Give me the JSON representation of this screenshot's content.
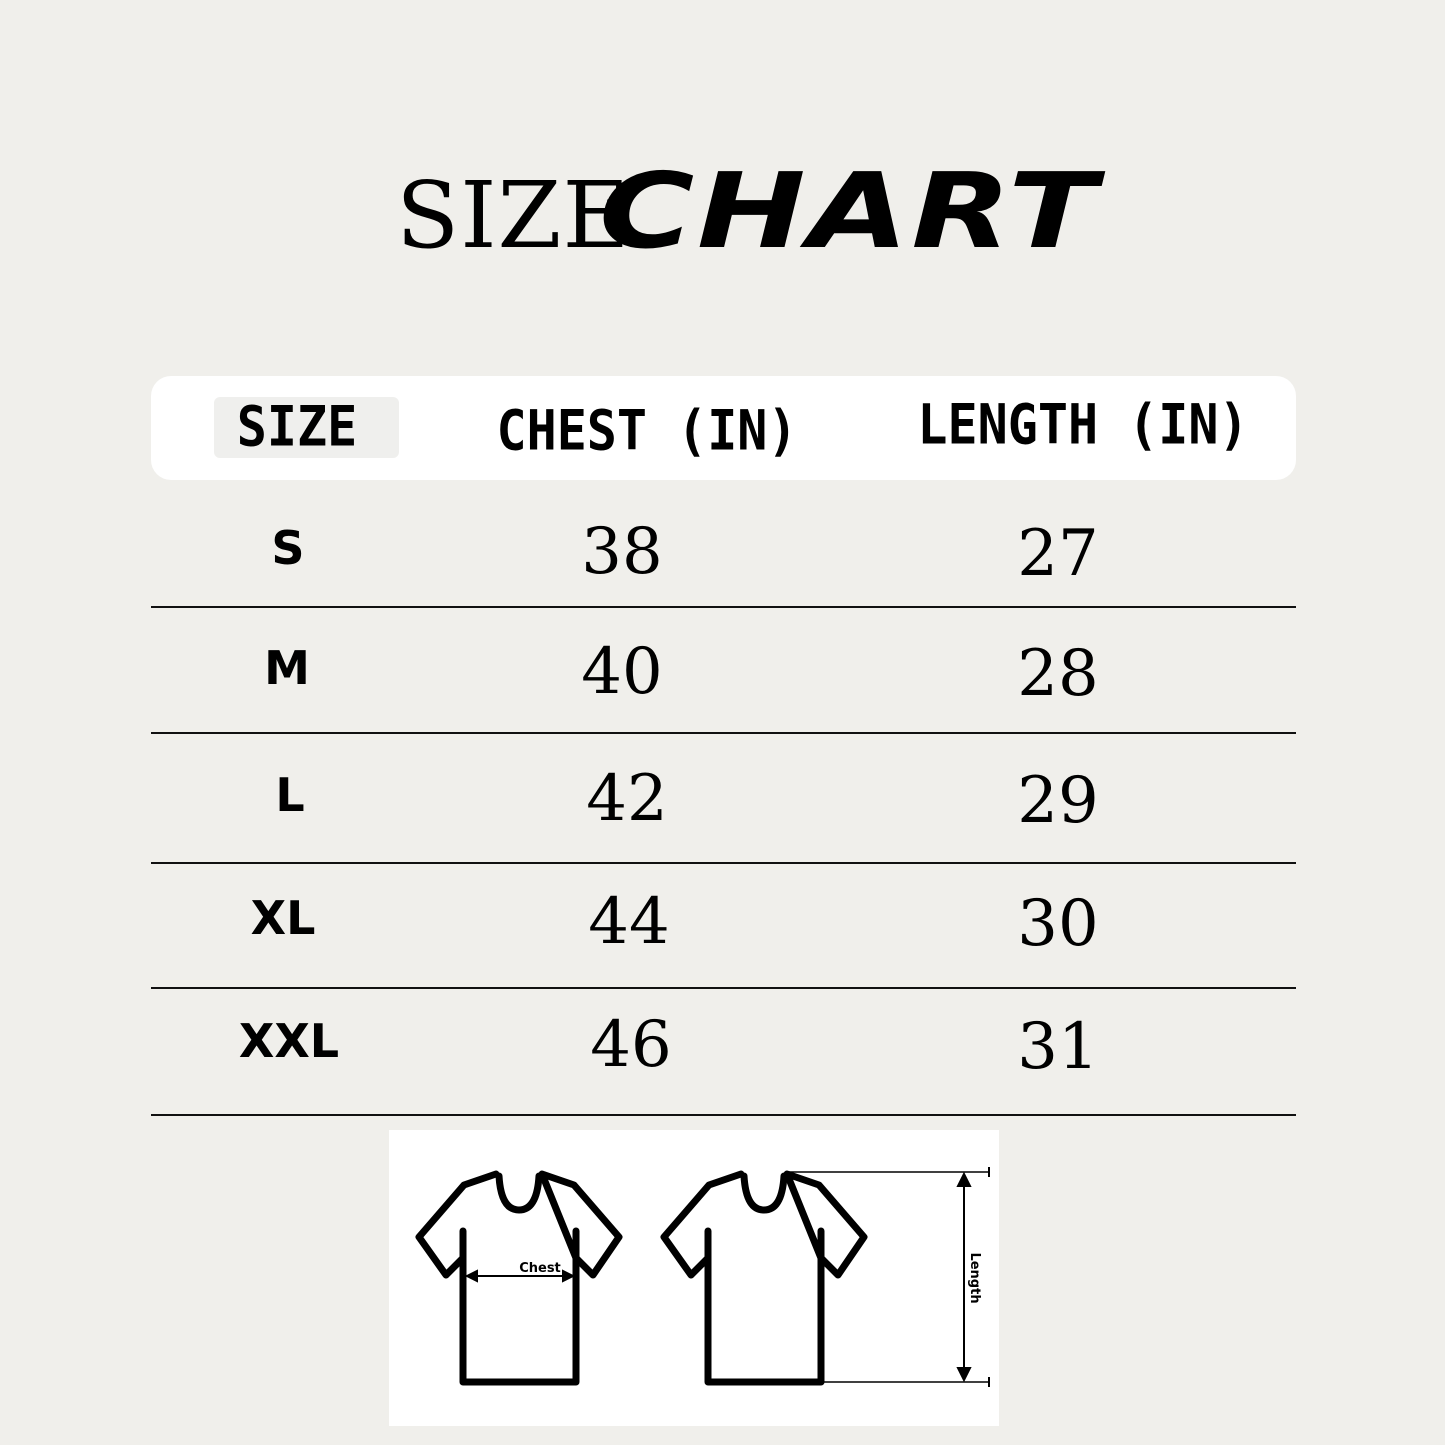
{
  "title": {
    "part1": "SIZE",
    "part2": "CHART"
  },
  "table": {
    "headers": [
      "SIZE",
      "CHEST (IN)",
      "LENGTH (IN)"
    ],
    "rows": [
      {
        "size": "S",
        "chest": "38",
        "length": "27"
      },
      {
        "size": "M",
        "chest": "40",
        "length": "28"
      },
      {
        "size": "L",
        "chest": "42",
        "length": "29"
      },
      {
        "size": "XL",
        "chest": "44",
        "length": "30"
      },
      {
        "size": "XXL",
        "chest": "46",
        "length": "31"
      }
    ]
  },
  "diagram": {
    "chest_label": "Chest",
    "length_label": "Length",
    "icon": "t-shirt-icon"
  },
  "colors": {
    "background": "#f0efeb",
    "header": "#ffffff",
    "text": "#000000"
  }
}
